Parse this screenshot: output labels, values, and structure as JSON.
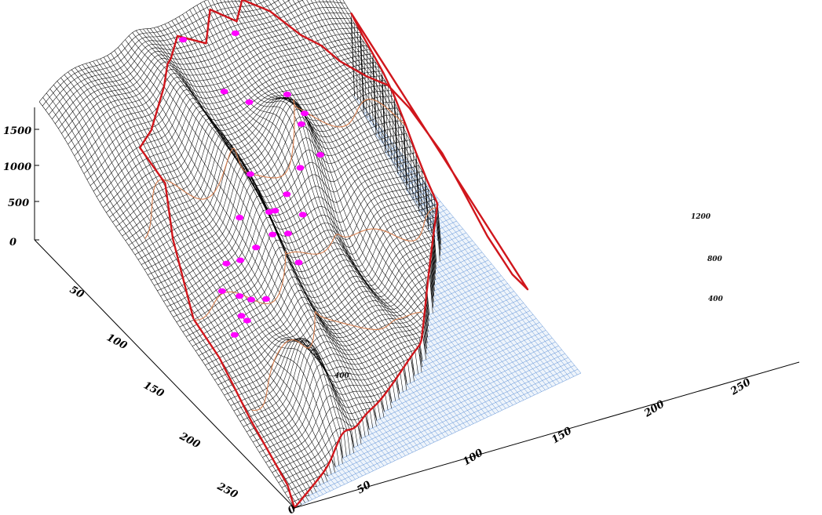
{
  "chart_data": {
    "type": "surface",
    "grid": true,
    "legend": "none",
    "colors": {
      "land_mesh": "#000000",
      "sea_mesh": "#5b8fd6",
      "sea_fill": "#eef4fb",
      "boundary": "#d0161c",
      "contour": "#d88050",
      "station": "#ff00ff"
    },
    "z_axis": {
      "ticks": [
        "0",
        "500",
        "1000",
        "1500"
      ],
      "zlim": [
        0,
        1700
      ]
    },
    "y_axis": {
      "ticks": [
        "50",
        "100",
        "150",
        "200",
        "250"
      ]
    },
    "x_axis": {
      "ticks": [
        "0",
        "50",
        "100",
        "150",
        "200",
        "250"
      ],
      "xlim": [
        0,
        280
      ]
    },
    "contour_labels": [
      "1200",
      "800",
      "400",
      "400"
    ],
    "stations": [
      [
        128,
        14
      ],
      [
        172,
        22
      ],
      [
        138,
        48
      ],
      [
        150,
        62
      ],
      [
        180,
        70
      ],
      [
        172,
        98
      ],
      [
        160,
        108
      ],
      [
        175,
        112
      ],
      [
        150,
        118
      ],
      [
        135,
        120
      ],
      [
        120,
        124
      ],
      [
        95,
        125
      ],
      [
        80,
        130
      ],
      [
        140,
        132
      ],
      [
        122,
        136
      ],
      [
        60,
        138
      ],
      [
        100,
        140
      ],
      [
        70,
        142
      ],
      [
        80,
        148
      ],
      [
        120,
        150
      ],
      [
        45,
        150
      ],
      [
        90,
        155
      ],
      [
        55,
        158
      ],
      [
        62,
        163
      ],
      [
        72,
        168
      ],
      [
        48,
        168
      ],
      [
        50,
        172
      ],
      [
        35,
        175
      ]
    ]
  }
}
